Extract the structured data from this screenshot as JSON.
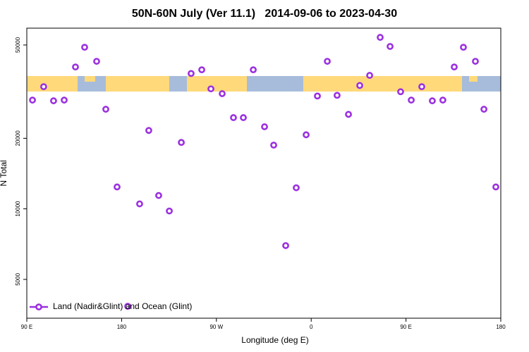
{
  "chart_data": {
    "type": "scatter",
    "title": "50N-60N July (Ver 11.1)   2014-09-06 to 2023-04-30",
    "x_label": "Longitude (deg E)",
    "y_label": "N Total",
    "xlim": [
      90,
      540
    ],
    "ylim": [
      3415,
      59000
    ],
    "ylog": true,
    "xticks": [
      {
        "value": 90,
        "label": "90 E"
      },
      180,
      {
        "value": 270,
        "label": "90 W"
      },
      {
        "value": 360,
        "label": "0"
      },
      {
        "value": 450,
        "label": "90 E"
      },
      {
        "value": 540,
        "label": "180"
      }
    ],
    "yticks": [
      5000,
      10000,
      20000,
      50000
    ],
    "legend": "bottom-left",
    "series": [
      {
        "name": "Land (Nadir&Glint) and Ocean (Glint)",
        "color": "#9b30e0",
        "x": [
          95.4,
          106,
          115.4,
          125.5,
          136.2,
          144.9,
          156.3,
          165,
          175.7,
          185.8,
          197.1,
          205.8,
          215.2,
          225.3,
          236.7,
          246,
          256.1,
          264.8,
          275.5,
          286.2,
          295.6,
          305,
          315.7,
          324.4,
          335.8,
          345.8,
          355.2,
          365.9,
          375.3,
          384.6,
          395.4,
          406.1,
          415.5,
          425.5,
          434.9,
          444.9,
          455,
          465,
          475,
          485,
          495.8,
          504.5,
          515.9,
          524,
          535.3
        ],
        "values": [
          29100,
          33200,
          28900,
          29100,
          40300,
          48900,
          42600,
          26600,
          12400,
          3840,
          10500,
          21600,
          11400,
          9790,
          19200,
          37800,
          39200,
          32500,
          31000,
          24500,
          24500,
          39200,
          22400,
          18700,
          6970,
          12300,
          20700,
          30300,
          42600,
          30500,
          25300,
          33600,
          37100,
          53900,
          49300,
          31600,
          29100,
          33200,
          28900,
          29100,
          40300,
          48900,
          42600,
          26600,
          12400
        ]
      }
    ]
  }
}
